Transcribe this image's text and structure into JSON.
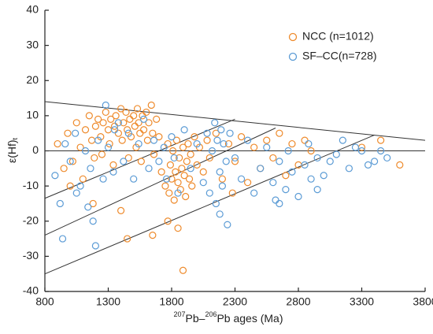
{
  "chart_data": {
    "type": "scatter",
    "xlabel": [
      "207",
      "Pb–",
      "206",
      "Pb ages (Ma)"
    ],
    "ylabel": [
      "ε(Hf)",
      "t"
    ],
    "xlim": [
      800,
      3800
    ],
    "xticks": [
      800,
      1300,
      1800,
      2300,
      2800,
      3300,
      3800
    ],
    "ylim": [
      -40,
      40
    ],
    "yticks": [
      -40,
      -30,
      -20,
      -10,
      0,
      10,
      20,
      30,
      40
    ],
    "legend": "upper right",
    "reference_lines": [
      {
        "x": [
          800,
          3800
        ],
        "y": [
          14,
          3
        ]
      },
      {
        "x": [
          800,
          3800
        ],
        "y": [
          0,
          0
        ]
      },
      {
        "x": [
          800,
          2300
        ],
        "y": [
          -13.5,
          9
        ]
      },
      {
        "x": [
          800,
          2620
        ],
        "y": [
          -24,
          6.5
        ]
      },
      {
        "x": [
          800,
          3400
        ],
        "y": [
          -35,
          4.5
        ]
      }
    ],
    "series": [
      {
        "name": "NCC (n=1012)",
        "color": "#ee8a2b",
        "x": [
          900,
          950,
          980,
          1020,
          1050,
          1080,
          1100,
          1120,
          1150,
          1170,
          1190,
          1200,
          1220,
          1240,
          1250,
          1260,
          1280,
          1300,
          1310,
          1320,
          1340,
          1350,
          1360,
          1380,
          1400,
          1410,
          1420,
          1440,
          1450,
          1460,
          1470,
          1480,
          1500,
          1510,
          1520,
          1530,
          1540,
          1550,
          1560,
          1570,
          1580,
          1600,
          1610,
          1620,
          1640,
          1650,
          1660,
          1680,
          1700,
          1720,
          1750,
          1770,
          1780,
          1790,
          1800,
          1810,
          1820,
          1830,
          1840,
          1850,
          1860,
          1870,
          1880,
          1890,
          1900,
          1910,
          1920,
          1930,
          1940,
          1950,
          1960,
          1980,
          2000,
          2020,
          2050,
          2080,
          2100,
          2150,
          2200,
          2250,
          2300,
          2350,
          2400,
          2450,
          2500,
          2550,
          2600,
          2650,
          2700,
          2750,
          2800,
          2850,
          2900,
          1450,
          1400,
          1650,
          1770,
          1890,
          1180,
          1000,
          3450,
          3600,
          3300,
          2280,
          1850
        ],
        "values": [
          2,
          -5,
          5,
          -3,
          8,
          1,
          -8,
          6,
          10,
          3,
          -2,
          7,
          9,
          4,
          -1,
          8,
          11,
          6,
          2,
          9,
          -4,
          7,
          10,
          5,
          12,
          3,
          8,
          11,
          6,
          -2,
          9,
          4,
          10,
          7,
          1,
          12,
          8,
          5,
          -3,
          10,
          6,
          11,
          3,
          8,
          13,
          5,
          -1,
          9,
          4,
          -6,
          -10,
          2,
          -12,
          -4,
          -8,
          0,
          -14,
          -6,
          3,
          -9,
          -2,
          -11,
          -5,
          1,
          -7,
          -13,
          -3,
          2,
          -8,
          -1,
          -10,
          4,
          -4,
          1,
          -6,
          3,
          -2,
          5,
          -8,
          2,
          -3,
          4,
          -9,
          1,
          -5,
          3,
          -2,
          5,
          -7,
          2,
          -4,
          3,
          0,
          -25,
          -17,
          -24,
          -20,
          -34,
          -15,
          -10,
          3,
          -4,
          1,
          -12,
          -22
        ]
      },
      {
        "name": "SF–CC(n=728)",
        "color": "#5b9bd5",
        "x": [
          880,
          920,
          940,
          960,
          1000,
          1040,
          1080,
          1120,
          1160,
          1180,
          1200,
          1220,
          1260,
          1300,
          1340,
          1380,
          1420,
          1460,
          1500,
          1540,
          1580,
          1620,
          1660,
          1700,
          1740,
          1760,
          1800,
          1820,
          1850,
          1900,
          1950,
          2000,
          2050,
          2080,
          2100,
          2120,
          2140,
          2150,
          2160,
          2180,
          2190,
          2200,
          2210,
          2230,
          2240,
          2260,
          2300,
          2350,
          2400,
          2450,
          2500,
          2550,
          2600,
          2620,
          2650,
          2700,
          2720,
          2750,
          2800,
          2850,
          2900,
          2950,
          3000,
          3050,
          3100,
          3150,
          3200,
          3250,
          3300,
          3350,
          3400,
          3450,
          3500,
          2880,
          2950,
          1280,
          1350,
          1140,
          2650,
          2180,
          1050
        ],
        "values": [
          -7,
          -15,
          -25,
          2,
          -3,
          5,
          -10,
          0,
          -5,
          -20,
          -27,
          3,
          -8,
          1,
          -6,
          8,
          -3,
          5,
          -8,
          2,
          9,
          -5,
          3,
          -3,
          1,
          -8,
          4,
          -2,
          -12,
          6,
          -5,
          2,
          -9,
          5,
          -12,
          0,
          8,
          -15,
          3,
          -6,
          6,
          -10,
          2,
          -3,
          -21,
          5,
          -2,
          -8,
          3,
          -12,
          -5,
          1,
          -9,
          -14,
          -3,
          -11,
          0,
          -6,
          -13,
          -4,
          -8,
          -2,
          -7,
          -3,
          -1,
          3,
          -5,
          1,
          0,
          -4,
          -3,
          0,
          -2,
          2,
          -11,
          13,
          6,
          -16,
          -15,
          -18,
          -12
        ]
      }
    ]
  }
}
